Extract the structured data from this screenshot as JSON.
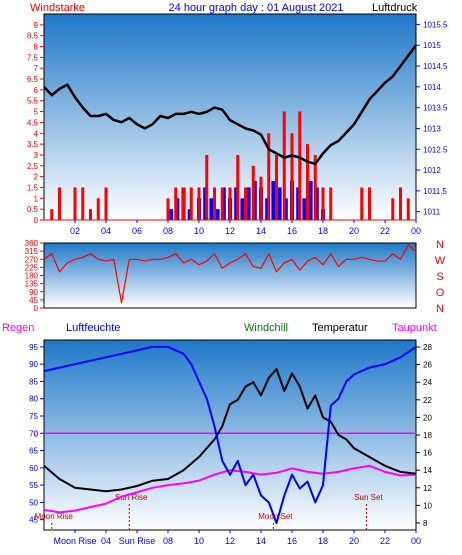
{
  "colors": {
    "wind": "#ff0000",
    "gust": "#0000ff",
    "pressure": "#000000",
    "humidity": "#0000ff",
    "temperature": "#000000",
    "dewpoint": "#ff00ff",
    "rain": "#ff00ff",
    "sun_marker": "#cc0000",
    "moon_marker": "#cc0000",
    "axis_left": "#ff0000",
    "axis_blue": "#0000ff",
    "windchill_label": "#008000",
    "background_top": "#1e78c8",
    "background_bottom": "#ffffff"
  },
  "chart_data": [
    {
      "type": "line",
      "panel": "wind_pressure",
      "title": "24 hour graph day : 01 August 2021",
      "ylabel_left": "Windstarke",
      "ylabel_right": "Luftdruck",
      "x_ticks": [
        "02",
        "04",
        "06",
        "08",
        "10",
        "12",
        "14",
        "16",
        "18",
        "20",
        "22",
        "00"
      ],
      "x_range": [
        0,
        24
      ],
      "ylim_left": [
        0,
        9.5
      ],
      "ylim_right": [
        1010.8,
        1015.75
      ],
      "y_ticks_left": [
        0,
        0.5,
        1,
        1.5,
        2,
        2.5,
        3,
        3.5,
        4,
        4.5,
        5,
        5.5,
        6,
        6.5,
        7,
        7.5,
        8,
        8.5,
        9
      ],
      "y_tick_labels_left": [
        "0",
        "0.5",
        "1",
        "1.5",
        "2",
        "2.5",
        "3",
        "3.5",
        "4",
        "4.5",
        "5",
        "5.5",
        "6",
        "6.5",
        "7",
        "7.5",
        "8",
        "8.5",
        "9"
      ],
      "y_ticks_right": [
        1011,
        1011.5,
        1012,
        1012.5,
        1013,
        1013.5,
        1014,
        1014.5,
        1015,
        1015.5
      ],
      "y_tick_labels_right": [
        "1011",
        "1011.5",
        "1012",
        "1012.5",
        "1013",
        "1013.5",
        "1014",
        "1014.5",
        "1015",
        "1015.5"
      ],
      "series": [
        {
          "name": "Luftdruck",
          "axis": "right",
          "x": [
            0,
            0.5,
            1,
            1.5,
            2,
            2.5,
            3,
            3.5,
            4,
            4.5,
            5,
            5.5,
            6,
            6.5,
            7,
            7.5,
            8,
            8.5,
            9,
            9.5,
            10,
            10.5,
            11,
            11.5,
            12,
            12.5,
            13,
            13.5,
            14,
            14.5,
            15,
            15.5,
            16,
            16.5,
            17,
            17.5,
            18,
            18.5,
            19,
            19.5,
            20,
            20.5,
            21,
            21.5,
            22,
            22.5,
            23,
            23.5,
            24
          ],
          "y": [
            1014.0,
            1013.8,
            1013.95,
            1014.05,
            1013.75,
            1013.5,
            1013.3,
            1013.3,
            1013.35,
            1013.2,
            1013.15,
            1013.25,
            1013.1,
            1013.0,
            1013.1,
            1013.3,
            1013.25,
            1013.35,
            1013.35,
            1013.4,
            1013.35,
            1013.4,
            1013.5,
            1013.45,
            1013.2,
            1013.1,
            1013.0,
            1012.95,
            1012.85,
            1012.5,
            1012.4,
            1012.3,
            1012.35,
            1012.3,
            1012.2,
            1012.15,
            1012.4,
            1012.6,
            1012.7,
            1012.9,
            1013.1,
            1013.4,
            1013.7,
            1013.9,
            1014.1,
            1014.25,
            1014.5,
            1014.75,
            1015.0
          ]
        },
        {
          "name": "Windgeschwindigkeit",
          "axis": "left",
          "x": [
            0,
            0.5,
            1,
            1.5,
            2,
            2.5,
            3,
            3.5,
            4,
            4.5,
            5,
            5.5,
            6,
            6.5,
            7,
            7.5,
            8,
            8.5,
            9,
            9.5,
            10,
            10.5,
            11,
            11.5,
            12,
            12.5,
            13,
            13.5,
            14,
            14.5,
            15,
            15.5,
            16,
            16.5,
            17,
            17.5,
            18,
            18.5,
            19,
            19.5,
            20,
            20.5,
            21,
            21.5,
            22,
            22.5,
            23,
            23.5,
            24
          ],
          "y": [
            0,
            0.5,
            1.5,
            0,
            1.5,
            1.5,
            0.5,
            1,
            1.5,
            0,
            0,
            0,
            0,
            0,
            0,
            0,
            1,
            1.5,
            1.5,
            1.5,
            1.5,
            3,
            1.5,
            1.5,
            1.5,
            3,
            1.5,
            2.5,
            2,
            4,
            3,
            5,
            4,
            5,
            3.5,
            3,
            1.5,
            1.5,
            0,
            0,
            0,
            1.5,
            1.5,
            0,
            0,
            1,
            1.5,
            1,
            0
          ]
        },
        {
          "name": "Boen",
          "axis": "left",
          "x": [
            8.2,
            8.6,
            9.0,
            9.4,
            10.0,
            10.4,
            10.8,
            11.2,
            11.6,
            12.0,
            12.4,
            12.8,
            13.2,
            13.6,
            14.0,
            14.4,
            14.8,
            15.2,
            15.6,
            16.0,
            16.4,
            16.8,
            17.2,
            17.6,
            18.0
          ],
          "y": [
            0.5,
            1.0,
            1.5,
            0.5,
            1.0,
            1.5,
            1.0,
            0.5,
            1.5,
            1.0,
            1.5,
            1.0,
            1.5,
            1.8,
            1.5,
            1.0,
            1.8,
            1.5,
            1.0,
            1.8,
            1.5,
            1.0,
            1.8,
            1.5,
            0.5
          ]
        }
      ]
    },
    {
      "type": "line",
      "panel": "wind_direction",
      "ylabel_right": "N W S O N",
      "ylim": [
        0,
        360
      ],
      "y_ticks": [
        0,
        45,
        90,
        135,
        180,
        225,
        270,
        315,
        360
      ],
      "y_tick_labels": [
        "0",
        "45",
        "90",
        "135",
        "180",
        "225",
        "270",
        "315",
        "360"
      ],
      "direction_labels": [
        "N",
        "W",
        "S",
        "O",
        "N"
      ],
      "x_range": [
        0,
        24
      ],
      "series": [
        {
          "name": "Windrichtung",
          "x": [
            0,
            0.5,
            1,
            1.5,
            2,
            2.5,
            3,
            3.5,
            4,
            4.5,
            5,
            5.5,
            6,
            6.5,
            7,
            7.5,
            8,
            8.5,
            9,
            9.5,
            10,
            10.5,
            11,
            11.5,
            12,
            12.5,
            13,
            13.5,
            14,
            14.5,
            15,
            15.5,
            16,
            16.5,
            17,
            17.5,
            18,
            18.5,
            19,
            19.5,
            20,
            20.5,
            21,
            21.5,
            22,
            22.5,
            23,
            23.5,
            24
          ],
          "y": [
            270,
            300,
            200,
            250,
            270,
            280,
            300,
            270,
            260,
            270,
            30,
            270,
            270,
            260,
            270,
            270,
            280,
            300,
            250,
            270,
            240,
            260,
            300,
            220,
            250,
            270,
            300,
            230,
            220,
            300,
            200,
            250,
            270,
            210,
            260,
            280,
            240,
            300,
            230,
            270,
            270,
            280,
            270,
            260,
            260,
            300,
            270,
            350,
            310
          ]
        }
      ]
    },
    {
      "type": "line",
      "panel": "temperature_humidity",
      "legend": [
        "Regen",
        "Luftfeuchte",
        "Windchill",
        "Temperatur",
        "Taupunkt"
      ],
      "x_ticks": [
        "Moon Rise",
        "04",
        "Sun Rise",
        "08",
        "10",
        "12",
        "14",
        "16",
        "18",
        "20",
        "22",
        "00"
      ],
      "x_range": [
        0,
        24
      ],
      "ylim_left": [
        42,
        97
      ],
      "ylim_right": [
        7.2,
        28.8
      ],
      "y_ticks_left": [
        45,
        50,
        55,
        60,
        65,
        70,
        75,
        80,
        85,
        90,
        95
      ],
      "y_tick_labels_left": [
        "45",
        "50",
        "55",
        "60",
        "65",
        "70",
        "75",
        "80",
        "85",
        "90",
        "95"
      ],
      "y_ticks_right": [
        8,
        10,
        12,
        14,
        16,
        18,
        20,
        22,
        24,
        26,
        28
      ],
      "y_tick_labels_right": [
        "8",
        "10",
        "12",
        "14",
        "16",
        "18",
        "20",
        "22",
        "24",
        "26",
        "28"
      ],
      "rain_total_label": "0",
      "annotations": [
        {
          "text": "Moon Rise",
          "x": 0.5
        },
        {
          "text": "Sun Rise",
          "x": 5.5
        },
        {
          "text": "Moon Set",
          "x": 14.8
        },
        {
          "text": "Sun Set",
          "x": 20.8
        }
      ],
      "series": [
        {
          "name": "Luftfeuchte",
          "axis": "left",
          "x": [
            0,
            1,
            2,
            3,
            4,
            5,
            6,
            7,
            8,
            9,
            9.5,
            10,
            10.5,
            11,
            11.5,
            12,
            12.5,
            13,
            13.5,
            14,
            14.5,
            15,
            15.5,
            16,
            16.5,
            17,
            17.5,
            18,
            18.5,
            19,
            19.5,
            20,
            21,
            22,
            23,
            24
          ],
          "y": [
            88,
            89,
            90,
            91,
            92,
            93,
            94,
            95,
            95,
            93,
            90,
            85,
            80,
            72,
            62,
            58,
            62,
            55,
            58,
            52,
            50,
            44,
            52,
            58,
            54,
            56,
            50,
            55,
            78,
            80,
            85,
            87,
            89,
            90,
            92,
            95
          ]
        },
        {
          "name": "Temperatur",
          "axis": "right",
          "x": [
            0,
            1,
            2,
            3,
            4,
            5,
            6,
            7,
            8,
            9,
            10,
            11,
            11.5,
            12,
            12.5,
            13,
            13.5,
            14,
            14.5,
            15,
            15.5,
            16,
            16.5,
            17,
            17.5,
            18,
            18.5,
            19,
            19.5,
            20,
            21,
            22,
            23,
            24
          ],
          "y": [
            14.5,
            13.0,
            12.0,
            11.8,
            11.6,
            11.8,
            12.2,
            12.8,
            13.0,
            14.0,
            15.5,
            17.5,
            19.0,
            21.5,
            22.0,
            23.5,
            24.0,
            22.5,
            24.5,
            25.5,
            23.0,
            25.0,
            23.5,
            21.0,
            22.5,
            20.0,
            19.5,
            18.0,
            17.5,
            16.5,
            15.5,
            14.5,
            13.8,
            13.6
          ]
        },
        {
          "name": "Taupunkt",
          "axis": "right",
          "x": [
            0,
            1,
            2,
            3,
            4,
            5,
            6,
            7,
            8,
            9,
            10,
            11,
            12,
            13,
            14,
            15,
            16,
            17,
            18,
            19,
            20,
            21,
            22,
            23,
            24
          ],
          "y": [
            9.5,
            9.2,
            9.4,
            9.8,
            10.2,
            11.0,
            11.5,
            12.0,
            12.3,
            12.5,
            12.8,
            13.5,
            14.0,
            13.8,
            13.5,
            13.7,
            14.2,
            13.8,
            13.6,
            13.8,
            14.2,
            14.5,
            13.8,
            13.4,
            13.5
          ]
        }
      ]
    }
  ]
}
